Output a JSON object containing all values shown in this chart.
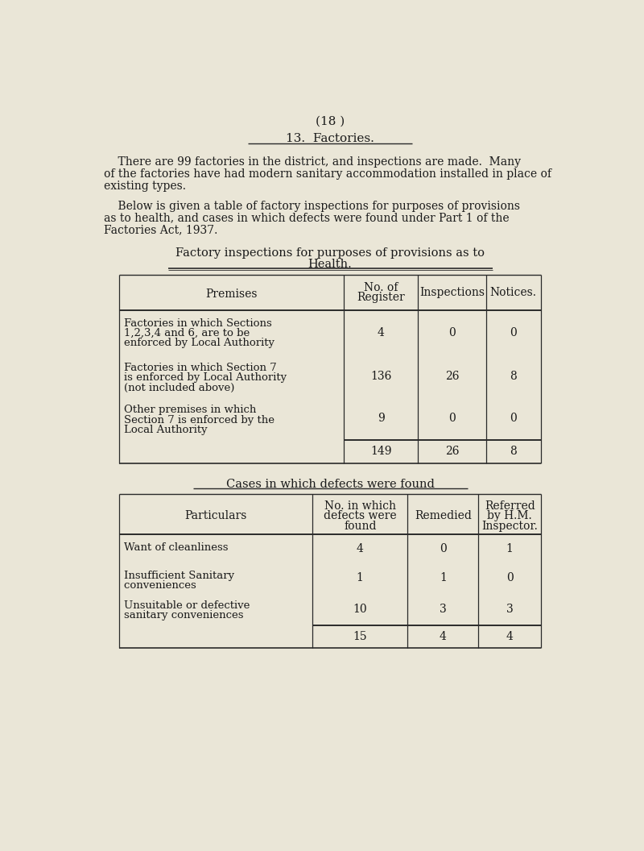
{
  "page_number": "(18 )",
  "section_title": "13.  Factories.",
  "para1_line1": "    There are 99 factories in the district, and inspections are made.  Many",
  "para1_line2": "of the factories have had modern sanitary accommodation installed in place of",
  "para1_line3": "existing types.",
  "para2_line1": "    Below is given a table of factory inspections for purposes of provisions",
  "para2_line2": "as to health, and cases in which defects were found under Part 1 of the",
  "para2_line3": "Factories Act, 1937.",
  "t1_title1": "Factory inspections for purposes of provisions as to",
  "t1_title2": "Health.",
  "t1_col_labels": [
    "Premises",
    "No. of\nRegister",
    "Inspections",
    "Notices."
  ],
  "t1_rows": [
    [
      "Factories in which Sections\n1,2,3,4 and 6, are to be\nenforced by Local Authority",
      "4",
      "0",
      "0"
    ],
    [
      "Factories in which Section 7\nis enforced by Local Authority\n(not included above)",
      "136",
      "26",
      "8"
    ],
    [
      "Other premises in which\nSection 7 is enforced by the\nLocal Authority",
      "9",
      "0",
      "0"
    ],
    [
      "",
      "149",
      "26",
      "8"
    ]
  ],
  "t2_title": "Cases in which defects were found",
  "t2_col_labels": [
    "Particulars",
    "No. in which\ndefects were\nfound",
    "Remedied",
    "Referred\nby H.M.\nInspector."
  ],
  "t2_rows": [
    [
      "Want of cleanliness",
      "4",
      "0",
      "1"
    ],
    [
      "Insufficient Sanitary\nconveniences ",
      "1",
      "1",
      "0"
    ],
    [
      "Unsuitable or defective\nsanitary conveniences",
      "10",
      "3",
      "3"
    ],
    [
      "",
      "15",
      "4",
      "4"
    ]
  ],
  "bg_color": "#eae6d7",
  "line_color": "#2a2a2a",
  "text_color": "#1a1a1a"
}
